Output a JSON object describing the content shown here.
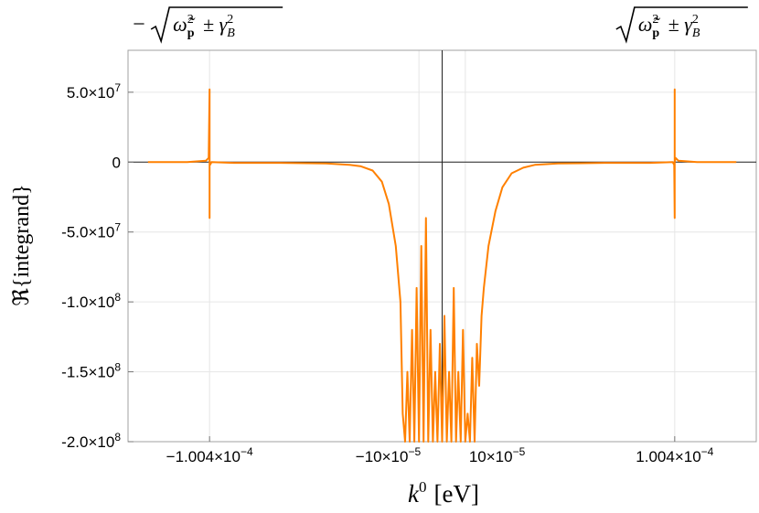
{
  "chart_data": {
    "type": "line",
    "title": "",
    "xlabel": "k",
    "xlabel_sup": "0",
    "xlabel_unit": "[eV]",
    "ylabel": "ℜ{integrand}",
    "color": "#ff8000",
    "xlim": [
      -0.0001356,
      0.0001356
    ],
    "ylim": [
      -200000000,
      80000000
    ],
    "grid": true,
    "x_ticks": [
      {
        "value": -0.0001004,
        "mant": "−1.004",
        "exp": "−4"
      },
      {
        "value": -1e-05,
        "mant": "−10",
        "exp": "−5"
      },
      {
        "value": 1e-05,
        "mant": "10",
        "exp": "−5"
      },
      {
        "value": 0.0001004,
        "mant": "1.004",
        "exp": "−4"
      }
    ],
    "y_ticks": [
      {
        "value": 50000000,
        "mant": "5.0",
        "exp": "7"
      },
      {
        "value": 0,
        "mant": "0",
        "exp": ""
      },
      {
        "value": -50000000,
        "mant": "-5.0",
        "exp": "7"
      },
      {
        "value": -100000000,
        "mant": "-1.0",
        "exp": "8"
      },
      {
        "value": -150000000,
        "mant": "-1.5",
        "exp": "8"
      },
      {
        "value": -200000000,
        "mant": "-2.0",
        "exp": "8"
      }
    ],
    "top_labels": [
      {
        "x": -0.0001004,
        "sign": "−",
        "body": "ω̃",
        "sub": "p",
        "pm": "± γ",
        "gsub": "B"
      },
      {
        "x": 0.0001004,
        "sign": "",
        "body": "ω̃",
        "sub": "p",
        "pm": "± γ",
        "gsub": "B"
      }
    ],
    "series": [
      {
        "x": [
          -0.000127,
          -0.00011,
          -0.000102,
          -0.0001008,
          -0.0001004,
          -0.0001004,
          -0.0001004,
          -0.0001002,
          -9.95e-05,
          -9e-05,
          -7e-05,
          -5e-05,
          -4e-05,
          -3.5e-05,
          -3e-05,
          -2.6e-05,
          -2.3e-05,
          -2e-05,
          -1.8e-05,
          -1.7e-05,
          -1.6e-05,
          -1.5e-05,
          -1.4e-05,
          -1.3e-05,
          -1.2e-05,
          -1.1e-05,
          -1e-05,
          -9e-06,
          -8e-06,
          -7e-06,
          -6e-06,
          -5e-06,
          -4e-06,
          -3e-06,
          -2e-06,
          -1e-06,
          0,
          1e-06,
          2e-06,
          3e-06,
          4e-06,
          5e-06,
          6e-06,
          7e-06,
          8e-06,
          9e-06,
          1e-05,
          1.1e-05,
          1.2e-05,
          1.3e-05,
          1.4e-05,
          1.5e-05,
          1.6e-05,
          1.7e-05,
          1.8e-05,
          2e-05,
          2.3e-05,
          2.6e-05,
          3e-05,
          3.5e-05,
          4e-05,
          5e-05,
          7e-05,
          9e-05,
          9.95e-05,
          0.0001002,
          0.0001004,
          0.0001004,
          0.0001004,
          0.0001008,
          0.000102,
          0.00011,
          0.000127
        ],
        "y": [
          0,
          0,
          1000000,
          3000000,
          52000000,
          -40000000,
          0,
          -2000000,
          0,
          -500000,
          -500000,
          -1000000,
          -2000000,
          -3000000,
          -6000000,
          -14000000,
          -30000000,
          -60000000,
          -100000000,
          -180000000,
          -200000000,
          -150000000,
          -200000000,
          -120000000,
          -200000000,
          -90000000,
          -200000000,
          -60000000,
          -200000000,
          -40000000,
          -200000000,
          -120000000,
          -200000000,
          -150000000,
          -200000000,
          -130000000,
          -200000000,
          -110000000,
          -200000000,
          -150000000,
          -200000000,
          -90000000,
          -200000000,
          -150000000,
          -200000000,
          -120000000,
          -200000000,
          -180000000,
          -200000000,
          -140000000,
          -200000000,
          -130000000,
          -160000000,
          -110000000,
          -90000000,
          -60000000,
          -35000000,
          -18000000,
          -8000000,
          -4000000,
          -2000000,
          -1000000,
          -500000,
          -500000,
          0,
          -2000000,
          -40000000,
          52000000,
          0,
          3000000,
          1000000,
          0,
          0
        ]
      }
    ]
  }
}
